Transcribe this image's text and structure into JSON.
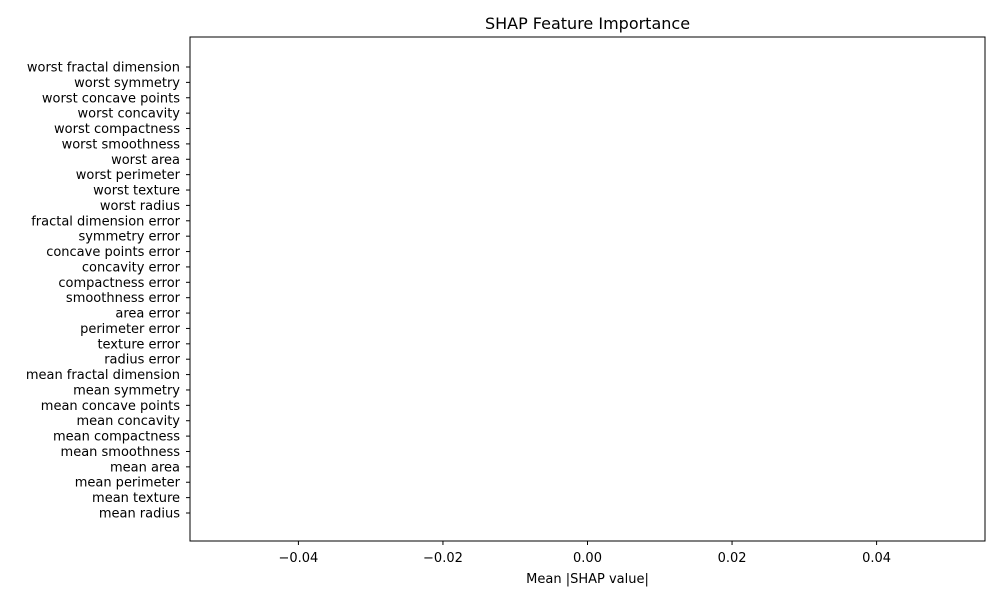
{
  "chart_data": {
    "type": "bar",
    "orientation": "horizontal",
    "title": "SHAP Feature Importance",
    "xlabel": "Mean |SHAP value|",
    "ylabel": "",
    "xlim": [
      -0.055,
      0.055
    ],
    "xticks": [
      {
        "value": -0.04,
        "label": "−0.04"
      },
      {
        "value": -0.02,
        "label": "−0.02"
      },
      {
        "value": 0.0,
        "label": "0.00"
      },
      {
        "value": 0.02,
        "label": "0.02"
      },
      {
        "value": 0.04,
        "label": "0.04"
      }
    ],
    "categories": [
      "mean radius",
      "mean texture",
      "mean perimeter",
      "mean area",
      "mean smoothness",
      "mean compactness",
      "mean concavity",
      "mean concave points",
      "mean symmetry",
      "mean fractal dimension",
      "radius error",
      "texture error",
      "perimeter error",
      "area error",
      "smoothness error",
      "compactness error",
      "concavity error",
      "concave points error",
      "symmetry error",
      "fractal dimension error",
      "worst radius",
      "worst texture",
      "worst perimeter",
      "worst area",
      "worst smoothness",
      "worst compactness",
      "worst concavity",
      "worst concave points",
      "worst symmetry",
      "worst fractal dimension"
    ],
    "values": [
      0,
      0,
      0,
      0,
      0,
      0,
      0,
      0,
      0,
      0,
      0,
      0,
      0,
      0,
      0,
      0,
      0,
      0,
      0,
      0,
      0,
      0,
      0,
      0,
      0,
      0,
      0,
      0,
      0,
      0
    ],
    "grid": false,
    "colors": {
      "bar": "#1f77b4",
      "axis": "#000000"
    }
  }
}
